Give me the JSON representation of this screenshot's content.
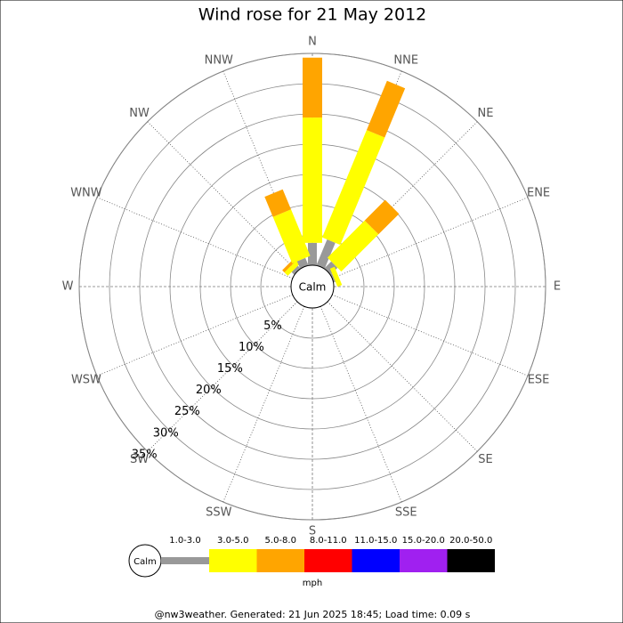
{
  "chart_data": {
    "type": "windrose",
    "title": "Wind rose for 21 May 2012",
    "categories": [
      "N",
      "NNE",
      "NE",
      "ENE",
      "E",
      "ESE",
      "SE",
      "SSE",
      "S",
      "SSW",
      "SW",
      "WSW",
      "W",
      "WNW",
      "NW",
      "NNW"
    ],
    "calm_label": "Calm",
    "ylim": [
      0,
      35
    ],
    "yticks": [
      {
        "value": 5,
        "label": "5%"
      },
      {
        "value": 10,
        "label": "10%"
      },
      {
        "value": 15,
        "label": "15%"
      },
      {
        "value": 20,
        "label": "20%"
      },
      {
        "value": 25,
        "label": "25%"
      },
      {
        "value": 30,
        "label": "30%"
      },
      {
        "value": 35,
        "label": "35%"
      }
    ],
    "series": [
      {
        "name": "1.0-3.0",
        "color": "#999999",
        "values": [
          3.7,
          4.6,
          1.6,
          0.3,
          0,
          0,
          0,
          0,
          0,
          0,
          0,
          0,
          0,
          0,
          0.6,
          1.3
        ]
      },
      {
        "name": "3.0-5.0",
        "color": "#ffff00",
        "values": [
          20.7,
          19.2,
          8.7,
          0.8,
          0,
          0,
          0,
          0,
          0,
          0,
          0,
          0,
          0,
          0,
          0.8,
          8.3
        ]
      },
      {
        "name": "5.0-8.0",
        "color": "#ffa500",
        "values": [
          9.9,
          8.8,
          4.8,
          0,
          0,
          0,
          0,
          0,
          0,
          0,
          0,
          0,
          0,
          0,
          0.5,
          3.6
        ]
      },
      {
        "name": "8.0-11.0",
        "color": "#ff0000",
        "values": [
          0,
          0,
          0,
          0,
          0,
          0,
          0,
          0,
          0,
          0,
          0,
          0,
          0,
          0,
          0,
          0
        ]
      },
      {
        "name": "11.0-15.0",
        "color": "#0000ff",
        "values": [
          0,
          0,
          0,
          0,
          0,
          0,
          0,
          0,
          0,
          0,
          0,
          0,
          0,
          0,
          0,
          0
        ]
      },
      {
        "name": "15.0-20.0",
        "color": "#a020f0",
        "values": [
          0,
          0,
          0,
          0,
          0,
          0,
          0,
          0,
          0,
          0,
          0,
          0,
          0,
          0,
          0,
          0
        ]
      },
      {
        "name": "20.0-50.0",
        "color": "#000000",
        "values": [
          0,
          0,
          0,
          0,
          0,
          0,
          0,
          0,
          0,
          0,
          0,
          0,
          0,
          0,
          0,
          0
        ]
      }
    ],
    "legend_unit": "mph",
    "footer": "@nw3weather. Generated: 21 Jun 2025 18:45; Load time: 0.09 s"
  }
}
